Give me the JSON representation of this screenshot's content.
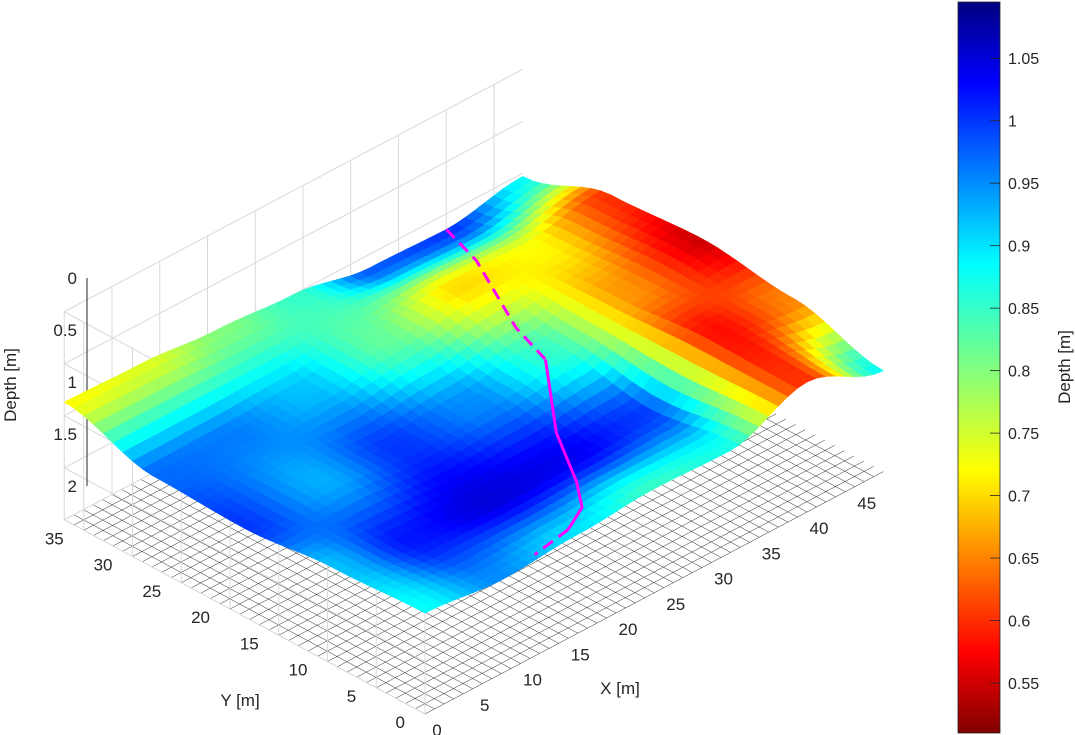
{
  "chart_data": {
    "type": "surface3d",
    "title": "",
    "xlabel": "X [m]",
    "ylabel": "Y [m]",
    "zlabel": "Depth [m]",
    "xlim": [
      0,
      48
    ],
    "ylim": [
      0,
      37
    ],
    "zlim": [
      0,
      2
    ],
    "z_reversed": true,
    "xticks": [
      "0",
      "5",
      "10",
      "15",
      "20",
      "25",
      "30",
      "35",
      "40",
      "45"
    ],
    "yticks": [
      "0",
      "5",
      "10",
      "15",
      "20",
      "25",
      "30",
      "35"
    ],
    "zticks": [
      "0",
      "0.5",
      "1",
      "1.5",
      "2"
    ],
    "grid": true,
    "colormap": "jet",
    "colorbar": {
      "label": "Depth [m]",
      "range": [
        0.51,
        1.095
      ],
      "ticks": [
        "0.55",
        "0.6",
        "0.65",
        "0.7",
        "0.75",
        "0.8",
        "0.85",
        "0.9",
        "0.95",
        "1",
        "1.05"
      ]
    },
    "x_grid": [
      0,
      8,
      16,
      24,
      32,
      40,
      48
    ],
    "y_grid": [
      0,
      9.25,
      18.5,
      27.75,
      37
    ],
    "depth_grid": [
      [
        0.88,
        0.92,
        1.0,
        0.97,
        0.72
      ],
      [
        0.95,
        1.02,
        0.93,
        0.96,
        0.74
      ],
      [
        0.9,
        1.05,
        1.0,
        0.92,
        0.8
      ],
      [
        0.85,
        1.04,
        0.95,
        0.82,
        0.85
      ],
      [
        0.87,
        1.0,
        0.85,
        0.7,
        0.98
      ],
      [
        0.6,
        0.58,
        0.66,
        0.72,
        1.0
      ],
      [
        0.88,
        0.65,
        0.55,
        0.6,
        0.88
      ]
    ],
    "path": {
      "color": "#ff00ff",
      "segments": [
        {
          "style": "dashed",
          "points": [
            [
              40,
              37
            ],
            [
              36,
              30
            ],
            [
              32,
              22
            ],
            [
              31,
              18
            ]
          ]
        },
        {
          "style": "solid",
          "points": [
            [
              31,
              18
            ],
            [
              26,
              12
            ],
            [
              22,
              6
            ],
            [
              19,
              2.5
            ],
            [
              16,
              1
            ]
          ]
        },
        {
          "style": "dashed",
          "points": [
            [
              16,
              1
            ],
            [
              12,
              0.5
            ]
          ]
        }
      ]
    }
  }
}
